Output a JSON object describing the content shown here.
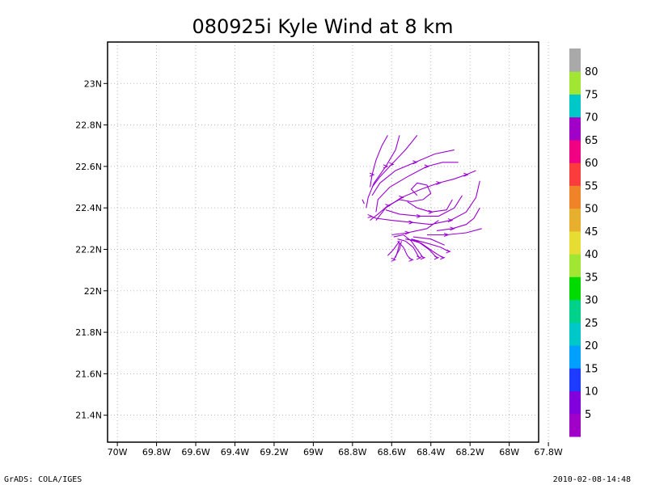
{
  "chart_data": {
    "type": "streamline",
    "title": "080925i Kyle Wind at 8 km",
    "x_ticks": [
      "70W",
      "69.8W",
      "69.6W",
      "69.4W",
      "69.2W",
      "69W",
      "68.8W",
      "68.6W",
      "68.4W",
      "68.2W",
      "68W",
      "67.8W"
    ],
    "x_tick_values": [
      -70.0,
      -69.8,
      -69.6,
      -69.4,
      -69.2,
      -69.0,
      -68.8,
      -68.6,
      -68.4,
      -68.2,
      -68.0,
      -67.8
    ],
    "y_ticks": [
      "21.4N",
      "21.6N",
      "21.8N",
      "22N",
      "22.2N",
      "22.4N",
      "22.6N",
      "22.8N",
      "23N"
    ],
    "y_tick_values": [
      21.4,
      21.6,
      21.8,
      22.0,
      22.2,
      22.4,
      22.6,
      22.8,
      23.0
    ],
    "xlim": [
      -70.05,
      -67.85
    ],
    "ylim": [
      21.27,
      23.2
    ],
    "grid": true,
    "stream_color": "#9b00d2",
    "streamlines": [
      [
        [
          -68.62,
          22.75
        ],
        [
          -68.65,
          22.7
        ],
        [
          -68.68,
          22.63
        ],
        [
          -68.7,
          22.56
        ],
        [
          -68.71,
          22.5
        ]
      ],
      [
        [
          -68.56,
          22.75
        ],
        [
          -68.58,
          22.68
        ],
        [
          -68.63,
          22.6
        ],
        [
          -68.69,
          22.52
        ],
        [
          -68.72,
          22.45
        ],
        [
          -68.73,
          22.4
        ]
      ],
      [
        [
          -68.47,
          22.75
        ],
        [
          -68.53,
          22.68
        ],
        [
          -68.6,
          22.61
        ],
        [
          -68.66,
          22.55
        ],
        [
          -68.7,
          22.5
        ]
      ],
      [
        [
          -68.28,
          22.68
        ],
        [
          -68.38,
          22.66
        ],
        [
          -68.48,
          22.62
        ],
        [
          -68.58,
          22.58
        ],
        [
          -68.66,
          22.52
        ],
        [
          -68.7,
          22.46
        ]
      ],
      [
        [
          -68.26,
          22.62
        ],
        [
          -68.34,
          22.62
        ],
        [
          -68.42,
          22.6
        ],
        [
          -68.52,
          22.55
        ],
        [
          -68.61,
          22.5
        ],
        [
          -68.67,
          22.44
        ],
        [
          -68.68,
          22.38
        ]
      ],
      [
        [
          -68.17,
          22.58
        ],
        [
          -68.22,
          22.56
        ],
        [
          -68.28,
          22.54
        ],
        [
          -68.36,
          22.52
        ],
        [
          -68.45,
          22.49
        ],
        [
          -68.55,
          22.45
        ],
        [
          -68.63,
          22.4
        ],
        [
          -68.68,
          22.34
        ]
      ],
      [
        [
          -68.47,
          22.46
        ],
        [
          -68.5,
          22.49
        ],
        [
          -68.47,
          22.52
        ],
        [
          -68.42,
          22.51
        ],
        [
          -68.4,
          22.47
        ],
        [
          -68.44,
          22.44
        ],
        [
          -68.5,
          22.43
        ],
        [
          -68.56,
          22.44
        ],
        [
          -68.62,
          22.41
        ],
        [
          -68.67,
          22.37
        ],
        [
          -68.71,
          22.34
        ]
      ],
      [
        [
          -68.15,
          22.53
        ],
        [
          -68.17,
          22.45
        ],
        [
          -68.22,
          22.38
        ],
        [
          -68.3,
          22.34
        ],
        [
          -68.4,
          22.32
        ],
        [
          -68.5,
          22.33
        ],
        [
          -68.6,
          22.34
        ],
        [
          -68.68,
          22.35
        ],
        [
          -68.71,
          22.36
        ]
      ],
      [
        [
          -68.24,
          22.46
        ],
        [
          -68.28,
          22.4
        ],
        [
          -68.36,
          22.36
        ],
        [
          -68.46,
          22.36
        ],
        [
          -68.56,
          22.37
        ],
        [
          -68.63,
          22.39
        ]
      ],
      [
        [
          -68.29,
          22.44
        ],
        [
          -68.32,
          22.39
        ],
        [
          -68.4,
          22.38
        ],
        [
          -68.47,
          22.4
        ],
        [
          -68.52,
          22.43
        ]
      ],
      [
        [
          -68.15,
          22.4
        ],
        [
          -68.18,
          22.35
        ],
        [
          -68.22,
          22.32
        ],
        [
          -68.29,
          22.3
        ],
        [
          -68.37,
          22.29
        ]
      ],
      [
        [
          -68.14,
          22.3
        ],
        [
          -68.22,
          22.28
        ],
        [
          -68.32,
          22.27
        ],
        [
          -68.42,
          22.27
        ]
      ],
      [
        [
          -68.36,
          22.34
        ],
        [
          -68.42,
          22.3
        ],
        [
          -68.52,
          22.28
        ],
        [
          -68.6,
          22.27
        ]
      ],
      [
        [
          -68.59,
          22.26
        ],
        [
          -68.54,
          22.27
        ],
        [
          -68.5,
          22.24
        ],
        [
          -68.47,
          22.2
        ],
        [
          -68.44,
          22.16
        ]
      ],
      [
        [
          -68.57,
          22.25
        ],
        [
          -68.53,
          22.24
        ],
        [
          -68.49,
          22.21
        ],
        [
          -68.46,
          22.16
        ]
      ],
      [
        [
          -68.57,
          22.24
        ],
        [
          -68.54,
          22.21
        ],
        [
          -68.52,
          22.17
        ],
        [
          -68.5,
          22.15
        ]
      ],
      [
        [
          -68.56,
          22.23
        ],
        [
          -68.57,
          22.19
        ],
        [
          -68.58,
          22.16
        ]
      ],
      [
        [
          -68.55,
          22.24
        ],
        [
          -68.56,
          22.2
        ],
        [
          -68.59,
          22.15
        ]
      ],
      [
        [
          -68.56,
          22.24
        ],
        [
          -68.59,
          22.2
        ],
        [
          -68.62,
          22.17
        ]
      ],
      [
        [
          -68.53,
          22.25
        ],
        [
          -68.47,
          22.24
        ],
        [
          -68.41,
          22.2
        ],
        [
          -68.37,
          22.16
        ]
      ],
      [
        [
          -68.52,
          22.25
        ],
        [
          -68.45,
          22.23
        ],
        [
          -68.39,
          22.19
        ],
        [
          -68.34,
          22.16
        ]
      ],
      [
        [
          -68.5,
          22.25
        ],
        [
          -68.42,
          22.23
        ],
        [
          -68.35,
          22.21
        ],
        [
          -68.31,
          22.19
        ]
      ],
      [
        [
          -68.49,
          22.26
        ],
        [
          -68.4,
          22.25
        ],
        [
          -68.33,
          22.22
        ]
      ],
      [
        [
          -68.74,
          22.42
        ],
        [
          -68.75,
          22.44
        ]
      ]
    ],
    "arrows": [
      [
        -68.7,
        22.56
      ],
      [
        -68.63,
        22.6
      ],
      [
        -68.6,
        22.61
      ],
      [
        -68.48,
        22.62
      ],
      [
        -68.42,
        22.6
      ],
      [
        -68.55,
        22.45
      ],
      [
        -68.62,
        22.41
      ],
      [
        -68.5,
        22.33
      ],
      [
        -68.46,
        22.36
      ],
      [
        -68.4,
        22.38
      ],
      [
        -68.29,
        22.3
      ],
      [
        -68.32,
        22.27
      ],
      [
        -68.52,
        22.28
      ],
      [
        -68.44,
        22.16
      ],
      [
        -68.46,
        22.16
      ],
      [
        -68.5,
        22.15
      ],
      [
        -68.59,
        22.15
      ],
      [
        -68.37,
        22.16
      ],
      [
        -68.34,
        22.16
      ],
      [
        -68.31,
        22.19
      ],
      [
        -68.71,
        22.36
      ],
      [
        -68.36,
        22.52
      ],
      [
        -68.22,
        22.56
      ],
      [
        -68.3,
        22.34
      ]
    ]
  },
  "colorbar": {
    "labels": [
      "5",
      "10",
      "15",
      "20",
      "25",
      "30",
      "35",
      "40",
      "45",
      "50",
      "55",
      "60",
      "65",
      "70",
      "75",
      "80"
    ],
    "colors": [
      "#a000c8",
      "#8200dc",
      "#1e3cff",
      "#00a0ff",
      "#00c8c8",
      "#00d28c",
      "#00dc00",
      "#a0e632",
      "#e6dc32",
      "#e6af2d",
      "#f08228",
      "#fa3c3c",
      "#f00082",
      "#a000c8",
      "#00c8c8",
      "#a0e632",
      "#a9a9a9"
    ]
  },
  "footer": {
    "left": "GrADS: COLA/IGES",
    "right": "2010-02-08-14:48"
  }
}
